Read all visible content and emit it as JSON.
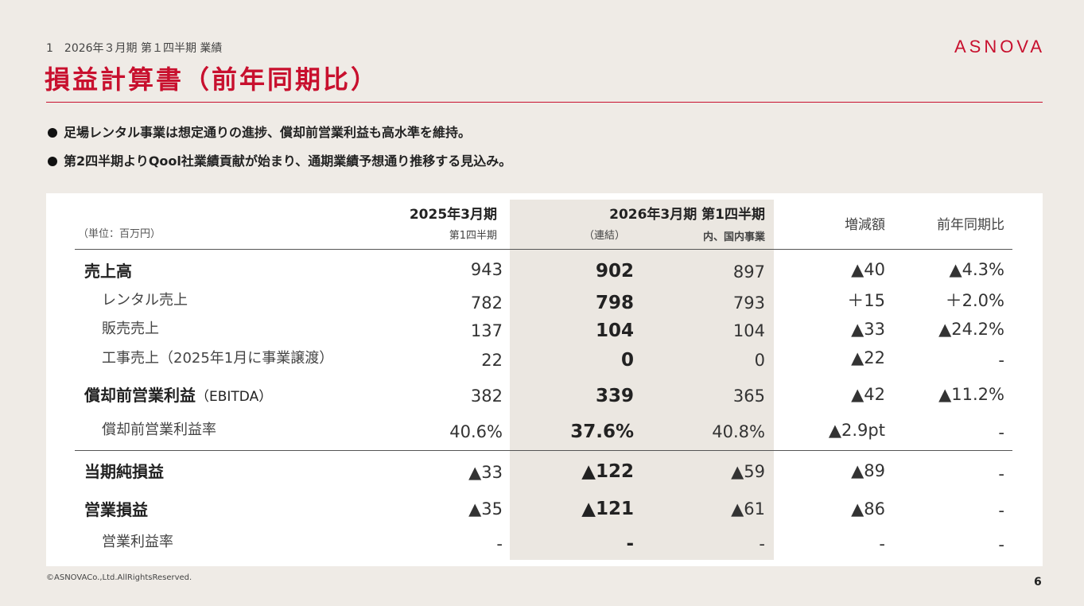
{
  "header": {
    "section_label": "1　2026年３月期 第１四半期 業績",
    "logo": "ASNOVA",
    "title": "損益計算書（前年同期比）"
  },
  "bullets": [
    "足場レンタル事業は想定通りの進捗、償却前営業利益も高水準を維持。",
    "第2四半期よりQool社業績貢献が始まり、通期業績予想通り推移する見込み。"
  ],
  "table": {
    "unit_label": "（単位：百万円）",
    "col_prev_title": "2025年3月期",
    "col_prev_sub": "第1四半期",
    "col_curr_title": "2026年3月期 第1四半期",
    "col_curr_consolidated": "（連結）",
    "col_curr_domestic": "内、国内事業",
    "col_change": "増減額",
    "col_yoy": "前年同期比",
    "rows": [
      {
        "label": "売上高",
        "prev": "943",
        "curr": "902",
        "dom": "897",
        "change": "▲40",
        "yoy": "▲4.3%"
      },
      {
        "label": "レンタル売上",
        "prev": "782",
        "curr": "798",
        "dom": "793",
        "change": "＋15",
        "yoy": "＋2.0%"
      },
      {
        "label": "販売売上",
        "prev": "137",
        "curr": "104",
        "dom": "104",
        "change": "▲33",
        "yoy": "▲24.2%"
      },
      {
        "label": "工事売上（2025年1月に事業譲渡）",
        "prev": "22",
        "curr": "0",
        "dom": "0",
        "change": "▲22",
        "yoy": "-"
      },
      {
        "label": "償却前営業利益",
        "label_suffix": "（EBITDA）",
        "prev": "382",
        "curr": "339",
        "dom": "365",
        "change": "▲42",
        "yoy": "▲11.2%"
      },
      {
        "label": "償却前営業利益率",
        "prev": "40.6%",
        "curr": "37.6%",
        "dom": "40.8%",
        "change": "▲2.9pt",
        "yoy": "-"
      },
      {
        "label": "当期純損益",
        "prev": "▲33",
        "curr": "▲122",
        "dom": "▲59",
        "change": "▲89",
        "yoy": "-"
      },
      {
        "label": "営業損益",
        "prev": "▲35",
        "curr": "▲121",
        "dom": "▲61",
        "change": "▲86",
        "yoy": "-"
      },
      {
        "label": "営業利益率",
        "prev": "-",
        "curr": "-",
        "dom": "-",
        "change": "-",
        "yoy": "-"
      }
    ]
  },
  "footer": {
    "copyright": "©ASNOVACo.,Ltd.AllRightsReserved.",
    "page_number": "6"
  },
  "colors": {
    "accent": "#c8102e",
    "background": "#efebe6",
    "highlight_column": "#ebe7e1"
  }
}
